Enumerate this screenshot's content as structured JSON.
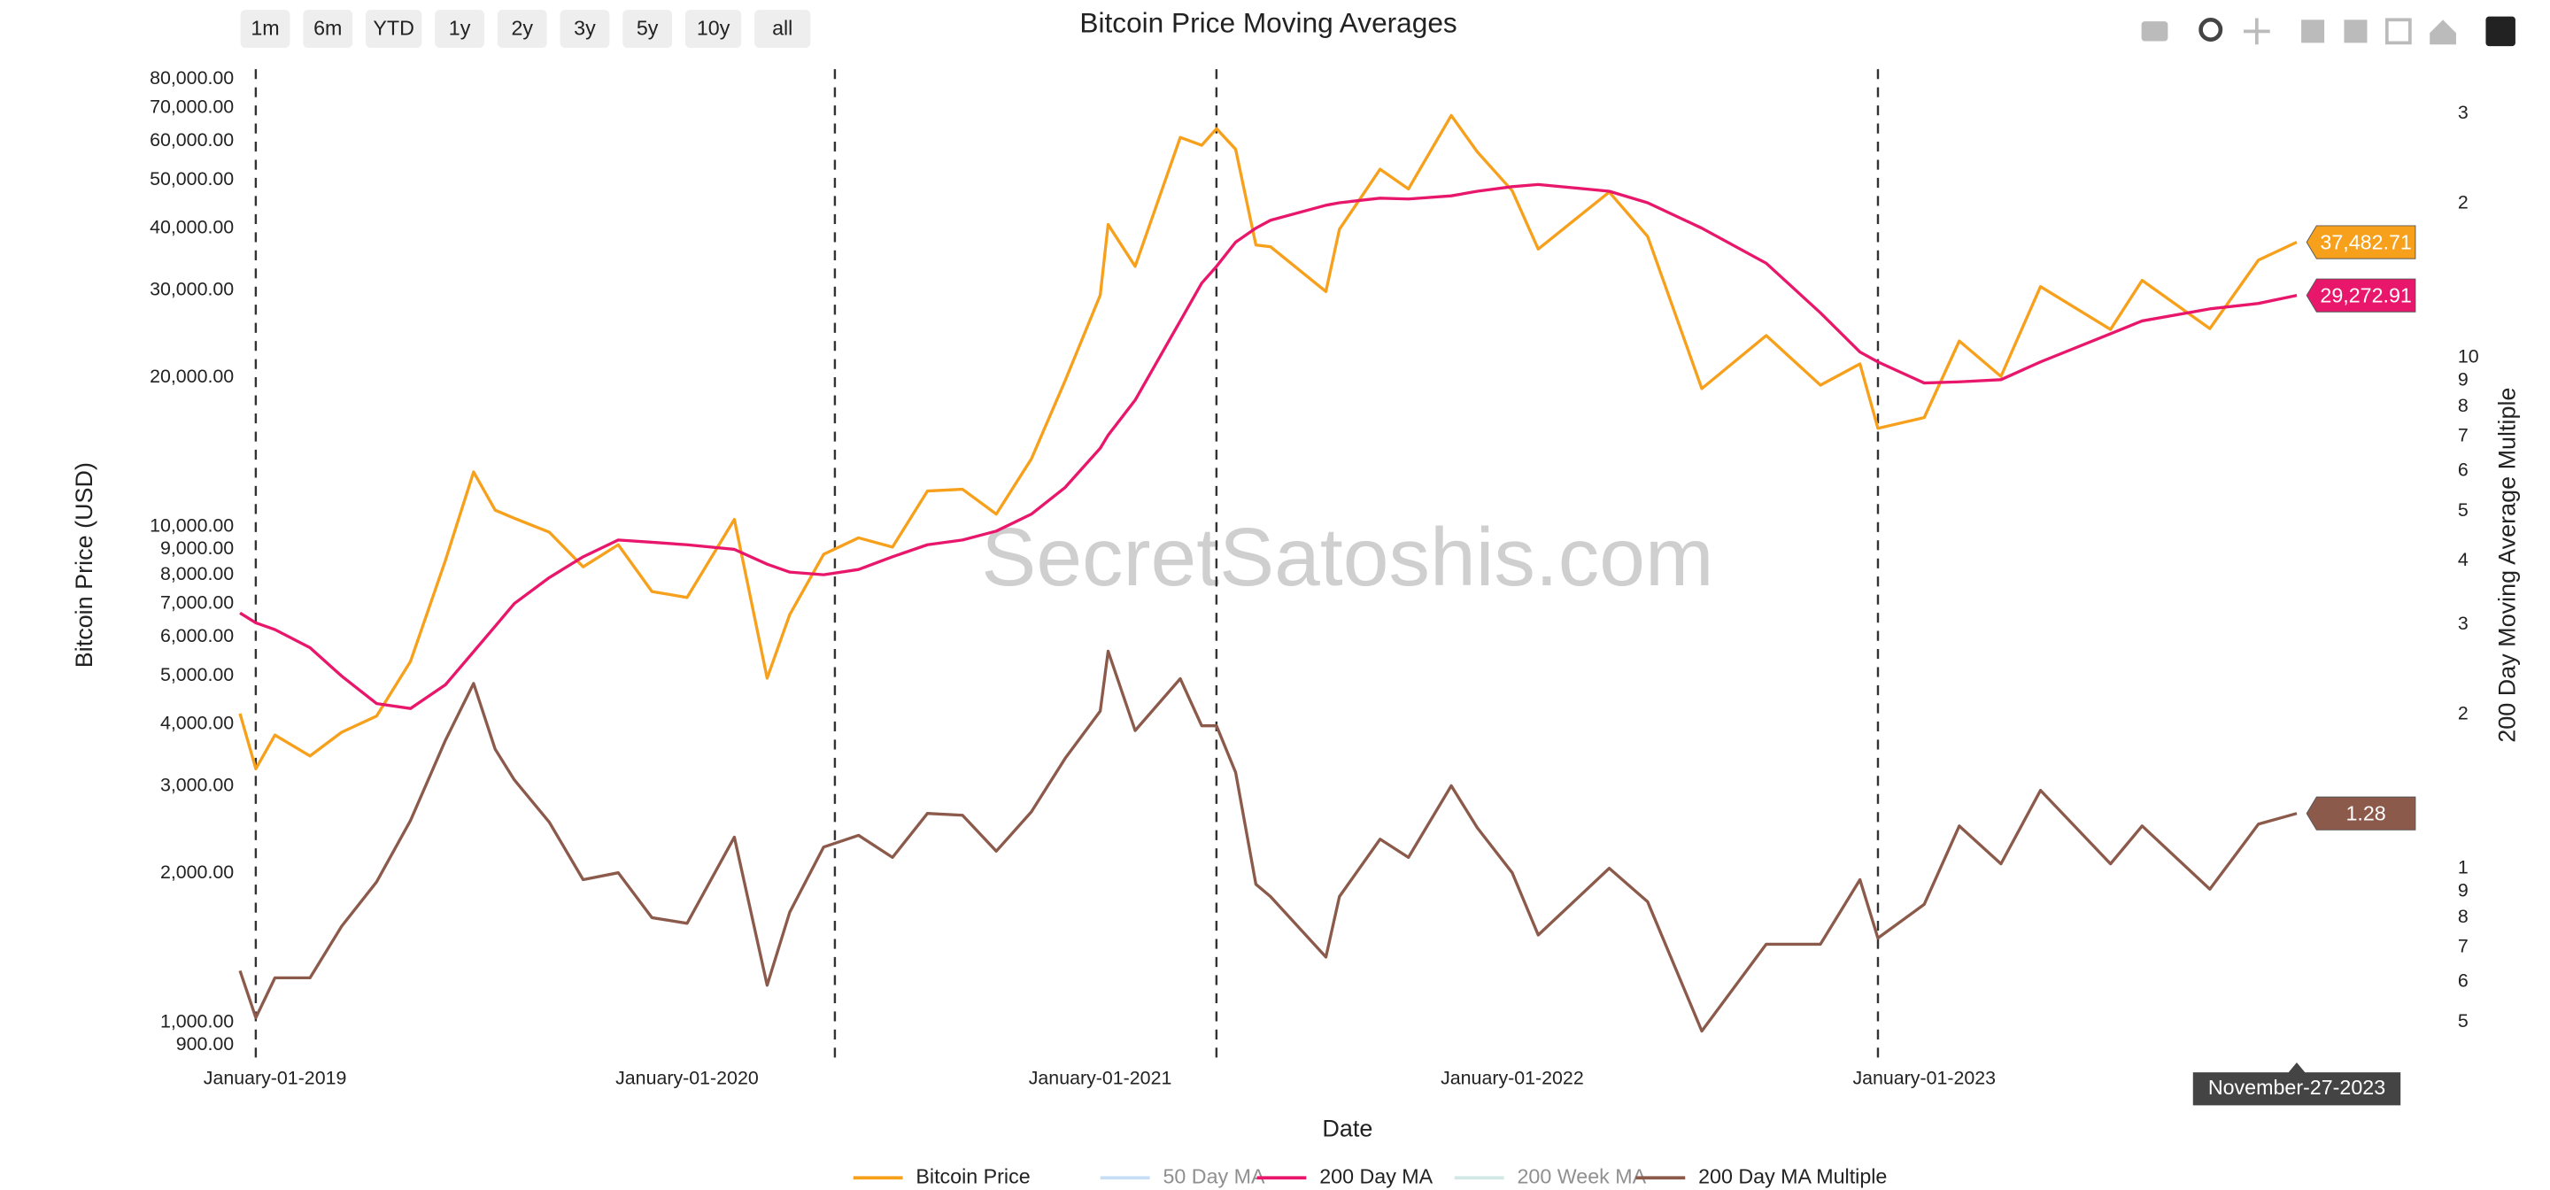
{
  "chart_data": {
    "type": "line",
    "title": "Bitcoin Price Moving Averages",
    "x_label": "Date",
    "y_label": "Bitcoin Price (USD)",
    "y2_label": "200 Day Moving Average Multiple",
    "watermark": "SecretSatoshis.com",
    "range_buttons": [
      "1m",
      "6m",
      "YTD",
      "1y",
      "2y",
      "3y",
      "5y",
      "10y",
      "all"
    ],
    "hover_label": "November-27-2023",
    "log_y": true,
    "log_y2": true,
    "grid": false,
    "legend_position": "bottom",
    "xlim": [
      "2018-11-30",
      "2024-02-28"
    ],
    "xticks": [
      {
        "value": "2019-01-01",
        "label": "January-01-2019"
      },
      {
        "value": "2020-01-01",
        "label": "January-01-2020"
      },
      {
        "value": "2021-01-01",
        "label": "January-01-2021"
      },
      {
        "value": "2022-01-01",
        "label": "January-01-2022"
      },
      {
        "value": "2023-01-01",
        "label": "January-01-2023"
      }
    ],
    "vlines": [
      "2018-12-15",
      "2020-05-11",
      "2021-04-14",
      "2022-11-21"
    ],
    "ylim": [
      850,
      85000
    ],
    "yticks": [
      {
        "value": 900,
        "label": "900.00"
      },
      {
        "value": 1000,
        "label": "1,000.00"
      },
      {
        "value": 2000,
        "label": "2,000.00"
      },
      {
        "value": 3000,
        "label": "3,000.00"
      },
      {
        "value": 4000,
        "label": "4,000.00"
      },
      {
        "value": 5000,
        "label": "5,000.00"
      },
      {
        "value": 6000,
        "label": "6,000.00"
      },
      {
        "value": 7000,
        "label": "7,000.00"
      },
      {
        "value": 8000,
        "label": "8,000.00"
      },
      {
        "value": 9000,
        "label": "9,000.00"
      },
      {
        "value": 10000,
        "label": "10,000.00"
      },
      {
        "value": 20000,
        "label": "20,000.00"
      },
      {
        "value": 30000,
        "label": "30,000.00"
      },
      {
        "value": 40000,
        "label": "40,000.00"
      },
      {
        "value": 50000,
        "label": "50,000.00"
      },
      {
        "value": 60000,
        "label": "60,000.00"
      },
      {
        "value": 70000,
        "label": "70,000.00"
      },
      {
        "value": 80000,
        "label": "80,000.00"
      }
    ],
    "y2lim": [
      0.426,
      37.2
    ],
    "y2ticks": [
      {
        "value": 0.5,
        "label": "5"
      },
      {
        "value": 0.6,
        "label": "6"
      },
      {
        "value": 0.7,
        "label": "7"
      },
      {
        "value": 0.8,
        "label": "8"
      },
      {
        "value": 0.9,
        "label": "9"
      },
      1,
      2,
      3,
      4,
      5,
      6,
      7,
      8,
      9,
      10,
      {
        "value": 20,
        "label": "2"
      },
      {
        "value": 30,
        "label": "3"
      }
    ],
    "x": [
      "2018-12-01",
      "2018-12-15",
      "2019-01-01",
      "2019-02-01",
      "2019-03-01",
      "2019-04-01",
      "2019-05-01",
      "2019-06-01",
      "2019-06-26",
      "2019-07-15",
      "2019-08-01",
      "2019-09-01",
      "2019-10-01",
      "2019-11-01",
      "2019-12-01",
      "2020-01-01",
      "2020-02-12",
      "2020-03-12",
      "2020-04-01",
      "2020-05-01",
      "2020-06-01",
      "2020-07-01",
      "2020-08-01",
      "2020-09-01",
      "2020-10-01",
      "2020-11-01",
      "2020-12-01",
      "2021-01-01",
      "2021-01-08",
      "2021-02-01",
      "2021-03-13",
      "2021-04-01",
      "2021-04-14",
      "2021-05-01",
      "2021-05-19",
      "2021-06-01",
      "2021-07-20",
      "2021-08-01",
      "2021-09-06",
      "2021-10-01",
      "2021-11-08",
      "2021-12-01",
      "2022-01-01",
      "2022-01-24",
      "2022-03-28",
      "2022-05-01",
      "2022-06-18",
      "2022-08-14",
      "2022-10-01",
      "2022-11-05",
      "2022-11-21",
      "2023-01-01",
      "2023-02-01",
      "2023-03-10",
      "2023-04-14",
      "2023-06-15",
      "2023-07-13",
      "2023-09-11",
      "2023-10-24",
      "2023-11-27"
    ],
    "series": [
      {
        "name": "Bitcoin Price",
        "color": "#f7a01b",
        "axis": "y",
        "end_label": "37,482.71",
        "values": [
          4200,
          3250,
          3800,
          3450,
          3850,
          4150,
          5350,
          8550,
          12900,
          10800,
          10400,
          9750,
          8300,
          9200,
          7400,
          7200,
          10350,
          4950,
          6650,
          8800,
          9500,
          9100,
          11800,
          11900,
          10600,
          13700,
          19700,
          29300,
          40700,
          33500,
          61000,
          58800,
          63500,
          57700,
          37000,
          36700,
          29800,
          39800,
          52600,
          48000,
          67500,
          57000,
          47600,
          36300,
          47300,
          38500,
          19000,
          24300,
          19300,
          21300,
          15800,
          16600,
          23700,
          20100,
          30500,
          25000,
          31400,
          25100,
          34500,
          37482.71
        ]
      },
      {
        "name": "200 Day MA",
        "color": "#e8176b",
        "axis": "y",
        "end_label": "29,272.91",
        "values": [
          6700,
          6400,
          6200,
          5700,
          5000,
          4400,
          4300,
          4800,
          5600,
          6300,
          7000,
          7900,
          8700,
          9400,
          9300,
          9200,
          9000,
          8400,
          8100,
          8000,
          8200,
          8700,
          9200,
          9400,
          9800,
          10600,
          12000,
          14400,
          15300,
          18000,
          26000,
          31000,
          33500,
          37500,
          40000,
          41500,
          44500,
          45000,
          46000,
          45800,
          46500,
          47500,
          48500,
          49000,
          47500,
          45000,
          40000,
          34000,
          27000,
          22500,
          21500,
          19500,
          19600,
          19800,
          21500,
          24500,
          26000,
          27500,
          28200,
          29272.91
        ]
      },
      {
        "name": "200 Day MA Multiple",
        "color": "#8b5a4b",
        "axis": "y2",
        "end_label": "1.28",
        "values": [
          0.63,
          0.51,
          0.61,
          0.61,
          0.77,
          0.94,
          1.24,
          1.78,
          2.3,
          1.71,
          1.49,
          1.23,
          0.95,
          0.98,
          0.8,
          0.78,
          1.15,
          0.59,
          0.82,
          1.1,
          1.16,
          1.05,
          1.28,
          1.27,
          1.08,
          1.29,
          1.64,
          2.03,
          2.66,
          1.86,
          2.35,
          1.9,
          1.9,
          1.54,
          0.93,
          0.88,
          0.67,
          0.88,
          1.14,
          1.05,
          1.45,
          1.2,
          0.98,
          0.74,
          1.0,
          0.86,
          0.48,
          0.71,
          0.71,
          0.95,
          0.73,
          0.85,
          1.21,
          1.02,
          1.42,
          1.02,
          1.21,
          0.91,
          1.22,
          1.28
        ]
      }
    ],
    "legend": [
      {
        "name": "Bitcoin Price",
        "color": "#f7a01b",
        "visible": true
      },
      {
        "name": "50 Day MA",
        "color": "#8ec1ef",
        "visible": false
      },
      {
        "name": "200 Day MA",
        "color": "#e8176b",
        "visible": true
      },
      {
        "name": "200 Week MA",
        "color": "#a6d3d0",
        "visible": false
      },
      {
        "name": "200 Day MA Multiple",
        "color": "#8b5a4b",
        "visible": true
      }
    ]
  }
}
